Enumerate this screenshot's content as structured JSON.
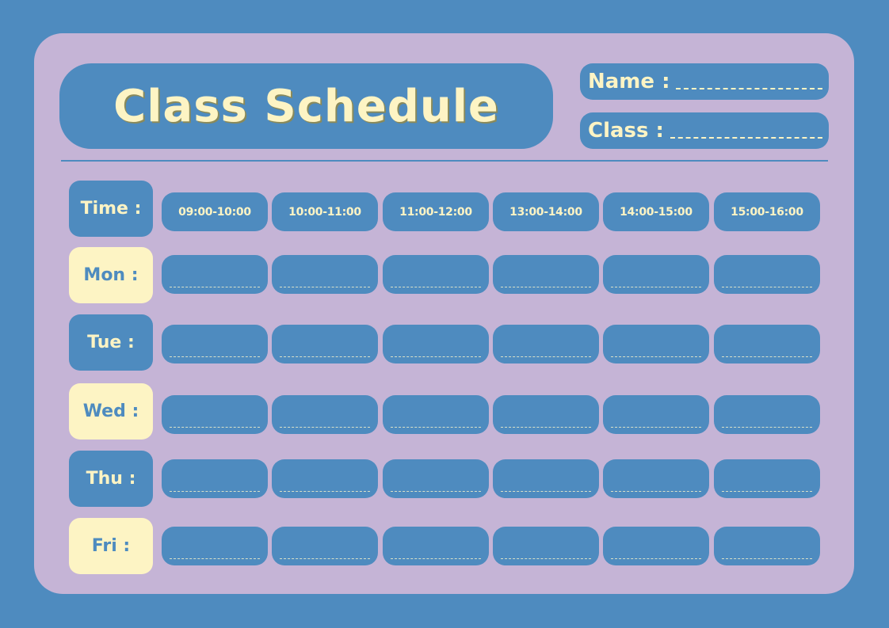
{
  "colors": {
    "background": "#4e8bbf",
    "card": "#c5b4d6",
    "accent": "#fdf4c4"
  },
  "header": {
    "title": "Class Schedule",
    "name_label": "Name :",
    "class_label": "Class :"
  },
  "schedule": {
    "time_label": "Time :",
    "times": [
      "09:00-10:00",
      "10:00-11:00",
      "11:00-12:00",
      "13:00-14:00",
      "14:00-15:00",
      "15:00-16:00"
    ],
    "days": [
      "Mon :",
      "Tue :",
      "Wed :",
      "Thu :",
      "Fri :"
    ]
  }
}
